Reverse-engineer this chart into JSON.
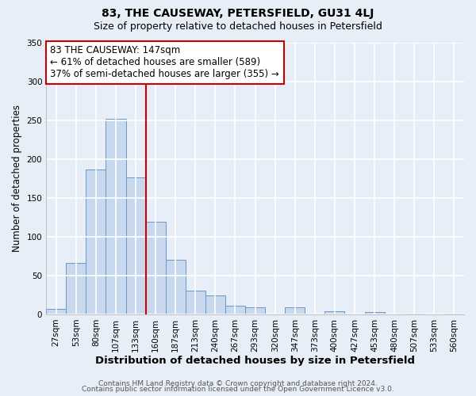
{
  "title": "83, THE CAUSEWAY, PETERSFIELD, GU31 4LJ",
  "subtitle": "Size of property relative to detached houses in Petersfield",
  "xlabel": "Distribution of detached houses by size in Petersfield",
  "ylabel": "Number of detached properties",
  "bar_labels": [
    "27sqm",
    "53sqm",
    "80sqm",
    "107sqm",
    "133sqm",
    "160sqm",
    "187sqm",
    "213sqm",
    "240sqm",
    "267sqm",
    "293sqm",
    "320sqm",
    "347sqm",
    "373sqm",
    "400sqm",
    "427sqm",
    "453sqm",
    "480sqm",
    "507sqm",
    "533sqm",
    "560sqm"
  ],
  "bar_values": [
    7,
    66,
    187,
    252,
    176,
    119,
    70,
    31,
    24,
    11,
    9,
    0,
    9,
    0,
    4,
    0,
    3,
    0,
    1,
    0,
    1
  ],
  "bar_color": "#c8d9ee",
  "bar_edge_color": "#6699cc",
  "ylim": [
    0,
    350
  ],
  "yticks": [
    0,
    50,
    100,
    150,
    200,
    250,
    300,
    350
  ],
  "vline_x": 4.5,
  "vline_color": "#cc0000",
  "annotation_text": "83 THE CAUSEWAY: 147sqm\n← 61% of detached houses are smaller (589)\n37% of semi-detached houses are larger (355) →",
  "annotation_box_color": "#ffffff",
  "annotation_box_edge": "#cc0000",
  "footer_line1": "Contains HM Land Registry data © Crown copyright and database right 2024.",
  "footer_line2": "Contains public sector information licensed under the Open Government Licence v3.0.",
  "fig_bg_color": "#e8eef7",
  "plot_bg_color": "#e8eef7",
  "grid_color": "#ffffff",
  "title_fontsize": 10,
  "subtitle_fontsize": 9,
  "xlabel_fontsize": 9.5,
  "ylabel_fontsize": 8.5,
  "tick_fontsize": 7.5,
  "annotation_fontsize": 8.5,
  "footer_fontsize": 6.5
}
